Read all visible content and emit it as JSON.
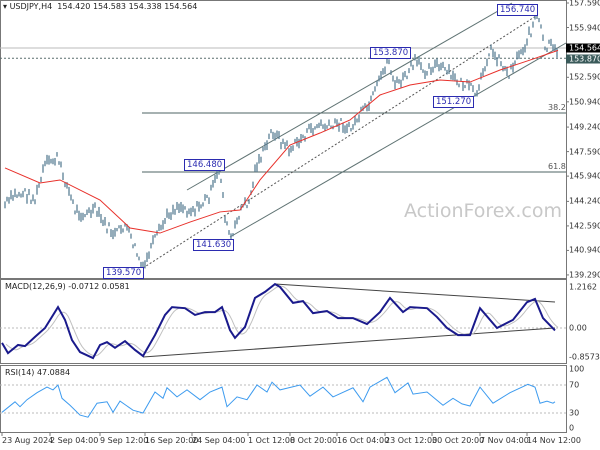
{
  "header": {
    "symbol": "USDJPY,H4",
    "open": "154.420",
    "high": "154.583",
    "low": "154.338",
    "close": "154.564"
  },
  "watermark": "ActionForex.com",
  "colors": {
    "price": "#5b7f95",
    "ma": "#e8302a",
    "macd": "#1a1a8c",
    "signal": "#c0c0c0",
    "rsi": "#3d9bef",
    "label": "#2b2bb0",
    "current_box": "#000000",
    "level_box": "#3a5a5a"
  },
  "chart_data": [
    {
      "type": "line",
      "title": "USDJPY,H4",
      "xlabel": "bar",
      "ylabel": "price",
      "ylim": [
        139.29,
        157.59
      ],
      "yticks": [
        "157.590",
        "155.940",
        "152.590",
        "150.940",
        "149.240",
        "147.590",
        "145.940",
        "144.240",
        "142.590",
        "140.940",
        "139.290"
      ],
      "current_price": "154.564",
      "marked_level": "153.870",
      "xticks": [
        "23 Aug 2024",
        "2 Sep 04:00",
        "9 Sep 12:00",
        "16 Sep 20:00",
        "24 Sep 04:00",
        "1 Oct 12:00",
        "8 Oct 20:00",
        "16 Oct 04:00",
        "23 Oct 12:00",
        "30 Oct 20:00",
        "7 Nov 04:00",
        "14 Nov 12:00"
      ],
      "close": [
        [
          5,
          144.0
        ],
        [
          15,
          144.67
        ],
        [
          25,
          144.8
        ],
        [
          35,
          144.33
        ],
        [
          45,
          146.69
        ],
        [
          57,
          147.16
        ],
        [
          65,
          145.68
        ],
        [
          75,
          143.66
        ],
        [
          85,
          143.32
        ],
        [
          95,
          143.66
        ],
        [
          105,
          142.65
        ],
        [
          115,
          141.98
        ],
        [
          125,
          142.65
        ],
        [
          135,
          141.1
        ],
        [
          143,
          139.57
        ],
        [
          150,
          140.97
        ],
        [
          160,
          142.31
        ],
        [
          168,
          143.32
        ],
        [
          178,
          144.0
        ],
        [
          188,
          143.66
        ],
        [
          198,
          143.79
        ],
        [
          210,
          144.67
        ],
        [
          220,
          146.48
        ],
        [
          226,
          142.65
        ],
        [
          232,
          141.63
        ],
        [
          240,
          143.66
        ],
        [
          250,
          144.33
        ],
        [
          256,
          146.69
        ],
        [
          265,
          147.7
        ],
        [
          272,
          149.04
        ],
        [
          280,
          148.37
        ],
        [
          290,
          147.7
        ],
        [
          300,
          148.37
        ],
        [
          310,
          149.04
        ],
        [
          320,
          149.38
        ],
        [
          330,
          149.18
        ],
        [
          340,
          149.58
        ],
        [
          350,
          149.04
        ],
        [
          360,
          150.05
        ],
        [
          370,
          150.73
        ],
        [
          380,
          152.41
        ],
        [
          388,
          153.87
        ],
        [
          395,
          152.07
        ],
        [
          405,
          152.54
        ],
        [
          415,
          153.62
        ],
        [
          425,
          153.08
        ],
        [
          435,
          153.42
        ],
        [
          445,
          153.08
        ],
        [
          455,
          152.41
        ],
        [
          465,
          152.07
        ],
        [
          470,
          151.87
        ],
        [
          478,
          151.27
        ],
        [
          483,
          153.08
        ],
        [
          490,
          154.43
        ],
        [
          500,
          153.75
        ],
        [
          508,
          152.74
        ],
        [
          515,
          153.75
        ],
        [
          525,
          154.76
        ],
        [
          532,
          155.91
        ],
        [
          536,
          156.74
        ],
        [
          540,
          156.11
        ],
        [
          545,
          154.43
        ],
        [
          550,
          154.76
        ],
        [
          555,
          154.29
        ],
        [
          558,
          154.56
        ]
      ],
      "ma": [
        [
          5,
          146.49
        ],
        [
          40,
          145.48
        ],
        [
          60,
          145.68
        ],
        [
          100,
          144.33
        ],
        [
          130,
          142.45
        ],
        [
          160,
          142.11
        ],
        [
          190,
          142.85
        ],
        [
          220,
          143.53
        ],
        [
          240,
          143.66
        ],
        [
          260,
          145.68
        ],
        [
          290,
          148.03
        ],
        [
          320,
          148.84
        ],
        [
          350,
          149.72
        ],
        [
          380,
          151.4
        ],
        [
          410,
          152.07
        ],
        [
          440,
          152.41
        ],
        [
          470,
          152.27
        ],
        [
          500,
          153.08
        ],
        [
          530,
          153.75
        ],
        [
          558,
          154.4
        ]
      ],
      "swing_labels": [
        {
          "text": "139.570",
          "bar": 143,
          "price": 139.57
        },
        {
          "text": "141.630",
          "bar": 232,
          "price": 141.63
        },
        {
          "text": "146.480",
          "bar": 220,
          "price": 146.48
        },
        {
          "text": "153.870",
          "bar": 405,
          "price": 153.87
        },
        {
          "text": "151.270",
          "bar": 478,
          "price": 151.27
        },
        {
          "text": "156.740",
          "bar": 532,
          "price": 156.74
        }
      ],
      "fib_levels": [
        {
          "label": "38.2",
          "price": 150.19
        },
        {
          "label": "61.8",
          "price": 146.22
        }
      ]
    },
    {
      "type": "line",
      "title": "MACD(12,26,9) -0.0712 0.0581",
      "ylim": [
        -0.8573,
        1.2162
      ],
      "yticks": [
        "1.2162",
        "0.00",
        "-0.8573"
      ],
      "macd": [
        [
          2,
          -0.42
        ],
        [
          8,
          -0.71
        ],
        [
          18,
          -0.48
        ],
        [
          25,
          -0.51
        ],
        [
          35,
          -0.25
        ],
        [
          45,
          0
        ],
        [
          58,
          0.59
        ],
        [
          65,
          0.23
        ],
        [
          72,
          -0.34
        ],
        [
          80,
          -0.68
        ],
        [
          93,
          -0.85
        ],
        [
          100,
          -0.48
        ],
        [
          107,
          -0.4
        ],
        [
          115,
          -0.56
        ],
        [
          125,
          -0.37
        ],
        [
          135,
          -0.62
        ],
        [
          143,
          -0.79
        ],
        [
          155,
          -0.2
        ],
        [
          165,
          0.37
        ],
        [
          172,
          0.59
        ],
        [
          185,
          0.56
        ],
        [
          195,
          0.37
        ],
        [
          205,
          0.45
        ],
        [
          215,
          0.45
        ],
        [
          222,
          0.59
        ],
        [
          230,
          -0.06
        ],
        [
          235,
          -0.28
        ],
        [
          245,
          0.03
        ],
        [
          255,
          0.85
        ],
        [
          265,
          1.02
        ],
        [
          275,
          1.24
        ],
        [
          280,
          1.16
        ],
        [
          293,
          0.71
        ],
        [
          303,
          0.76
        ],
        [
          313,
          0.42
        ],
        [
          327,
          0.48
        ],
        [
          338,
          0.28
        ],
        [
          353,
          0.28
        ],
        [
          367,
          0.11
        ],
        [
          380,
          0.45
        ],
        [
          390,
          0.85
        ],
        [
          403,
          0.45
        ],
        [
          410,
          0.59
        ],
        [
          427,
          0.56
        ],
        [
          437,
          0.31
        ],
        [
          447,
          0
        ],
        [
          458,
          -0.2
        ],
        [
          470,
          -0.2
        ],
        [
          480,
          0.56
        ],
        [
          497,
          0
        ],
        [
          513,
          0.23
        ],
        [
          527,
          0.73
        ],
        [
          535,
          0.82
        ],
        [
          543,
          0.28
        ],
        [
          555,
          -0.07
        ]
      ]
    },
    {
      "type": "line",
      "title": "RSI(14) 47.0884",
      "ylim": [
        0,
        100
      ],
      "yticks": [
        "100",
        "70",
        "30",
        "0"
      ],
      "rsi": [
        [
          2,
          31
        ],
        [
          15,
          46
        ],
        [
          20,
          39
        ],
        [
          27,
          49
        ],
        [
          37,
          59
        ],
        [
          47,
          67
        ],
        [
          53,
          63
        ],
        [
          58,
          70
        ],
        [
          62,
          51
        ],
        [
          70,
          41
        ],
        [
          80,
          27
        ],
        [
          88,
          24
        ],
        [
          97,
          44
        ],
        [
          107,
          46
        ],
        [
          113,
          31
        ],
        [
          120,
          47
        ],
        [
          133,
          34
        ],
        [
          143,
          30
        ],
        [
          155,
          60
        ],
        [
          163,
          51
        ],
        [
          167,
          66
        ],
        [
          177,
          53
        ],
        [
          187,
          63
        ],
        [
          200,
          49
        ],
        [
          210,
          60
        ],
        [
          222,
          67
        ],
        [
          227,
          39
        ],
        [
          237,
          53
        ],
        [
          247,
          49
        ],
        [
          257,
          70
        ],
        [
          267,
          60
        ],
        [
          272,
          74
        ],
        [
          280,
          63
        ],
        [
          300,
          70
        ],
        [
          310,
          54
        ],
        [
          323,
          67
        ],
        [
          333,
          53
        ],
        [
          353,
          66
        ],
        [
          363,
          46
        ],
        [
          370,
          67
        ],
        [
          387,
          81
        ],
        [
          395,
          59
        ],
        [
          408,
          73
        ],
        [
          413,
          57
        ],
        [
          427,
          60
        ],
        [
          443,
          41
        ],
        [
          453,
          51
        ],
        [
          462,
          43
        ],
        [
          470,
          40
        ],
        [
          480,
          67
        ],
        [
          493,
          44
        ],
        [
          510,
          59
        ],
        [
          528,
          71
        ],
        [
          535,
          67
        ],
        [
          540,
          44
        ],
        [
          547,
          47
        ],
        [
          553,
          44
        ],
        [
          555,
          46
        ]
      ]
    }
  ]
}
